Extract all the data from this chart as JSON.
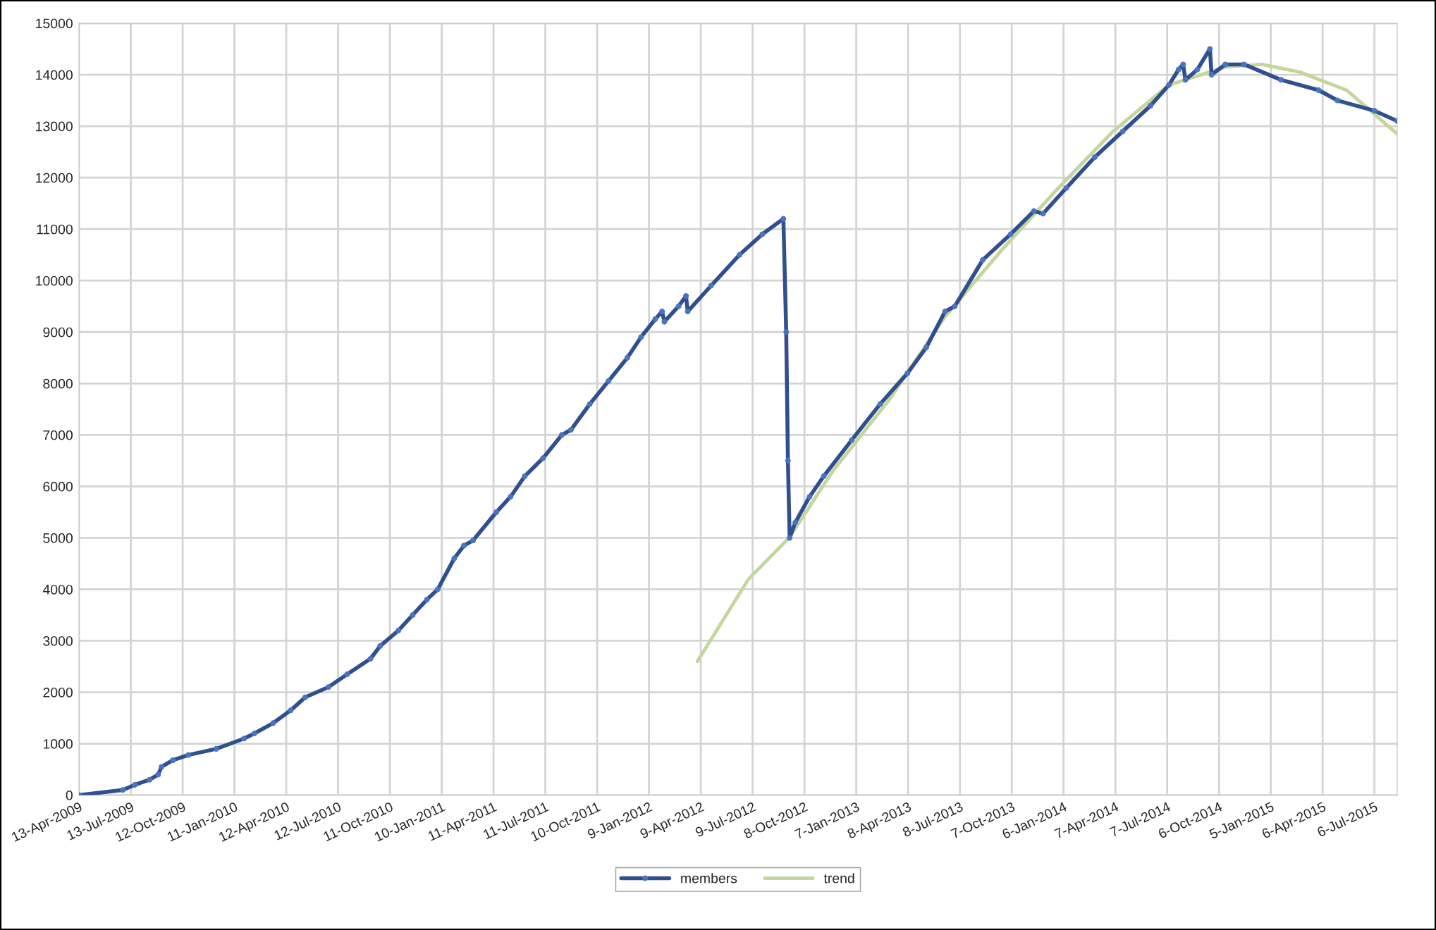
{
  "chart_data": {
    "type": "line",
    "xlim": [
      "2009-04-13",
      "2015-08-15"
    ],
    "ylim": [
      0,
      15000
    ],
    "yticks": [
      0,
      1000,
      2000,
      3000,
      4000,
      5000,
      6000,
      7000,
      8000,
      9000,
      10000,
      11000,
      12000,
      13000,
      14000,
      15000
    ],
    "xticks": [
      {
        "value": "2009-04-13",
        "label": "13-Apr-2009"
      },
      {
        "value": "2009-07-13",
        "label": "13-Jul-2009"
      },
      {
        "value": "2009-10-12",
        "label": "12-Oct-2009"
      },
      {
        "value": "2010-01-11",
        "label": "11-Jan-2010"
      },
      {
        "value": "2010-04-12",
        "label": "12-Apr-2010"
      },
      {
        "value": "2010-07-12",
        "label": "12-Jul-2010"
      },
      {
        "value": "2010-10-11",
        "label": "11-Oct-2010"
      },
      {
        "value": "2011-01-10",
        "label": "10-Jan-2011"
      },
      {
        "value": "2011-04-11",
        "label": "11-Apr-2011"
      },
      {
        "value": "2011-07-11",
        "label": "11-Jul-2011"
      },
      {
        "value": "2011-10-10",
        "label": "10-Oct-2011"
      },
      {
        "value": "2012-01-09",
        "label": "9-Jan-2012"
      },
      {
        "value": "2012-04-09",
        "label": "9-Apr-2012"
      },
      {
        "value": "2012-07-09",
        "label": "9-Jul-2012"
      },
      {
        "value": "2012-10-08",
        "label": "8-Oct-2012"
      },
      {
        "value": "2013-01-07",
        "label": "7-Jan-2013"
      },
      {
        "value": "2013-04-08",
        "label": "8-Apr-2013"
      },
      {
        "value": "2013-07-08",
        "label": "8-Jul-2013"
      },
      {
        "value": "2013-10-07",
        "label": "7-Oct-2013"
      },
      {
        "value": "2014-01-06",
        "label": "6-Jan-2014"
      },
      {
        "value": "2014-04-07",
        "label": "7-Apr-2014"
      },
      {
        "value": "2014-07-07",
        "label": "7-Jul-2014"
      },
      {
        "value": "2014-10-06",
        "label": "6-Oct-2014"
      },
      {
        "value": "2015-01-05",
        "label": "5-Jan-2015"
      },
      {
        "value": "2015-04-06",
        "label": "6-Apr-2015"
      },
      {
        "value": "2015-07-06",
        "label": "6-Jul-2015"
      }
    ],
    "grid": true,
    "legend": "bottom",
    "series": [
      {
        "name": "members",
        "color": "#2f4f8f",
        "marker": "circle",
        "x": [
          "2009-04-13",
          "2009-06-29",
          "2009-07-20",
          "2009-08-15",
          "2009-08-30",
          "2009-09-05",
          "2009-09-25",
          "2009-10-22",
          "2009-12-10",
          "2010-01-28",
          "2010-02-15",
          "2010-03-20",
          "2010-04-20",
          "2010-05-15",
          "2010-06-25",
          "2010-07-28",
          "2010-09-07",
          "2010-09-24",
          "2010-10-26",
          "2010-11-20",
          "2010-12-15",
          "2011-01-03",
          "2011-02-01",
          "2011-02-18",
          "2011-03-06",
          "2011-04-16",
          "2011-05-11",
          "2011-06-05",
          "2011-07-07",
          "2011-08-09",
          "2011-08-25",
          "2011-09-27",
          "2011-10-30",
          "2011-12-02",
          "2011-12-26",
          "2012-01-20",
          "2012-02-01",
          "2012-02-05",
          "2012-03-01",
          "2012-03-14",
          "2012-03-17",
          "2012-04-27",
          "2012-06-16",
          "2012-07-26",
          "2012-09-01",
          "2012-09-06",
          "2012-09-09",
          "2012-09-12",
          "2012-09-22",
          "2012-10-17",
          "2012-11-11",
          "2012-12-30",
          "2013-02-18",
          "2013-04-07",
          "2013-05-10",
          "2013-06-12",
          "2013-06-29",
          "2013-08-17",
          "2013-10-05",
          "2013-11-15",
          "2013-12-01",
          "2014-01-11",
          "2014-03-02",
          "2014-04-20",
          "2014-06-08",
          "2014-07-10",
          "2014-07-27",
          "2014-08-04",
          "2014-08-08",
          "2014-08-29",
          "2014-09-20",
          "2014-09-23",
          "2014-10-17",
          "2014-11-19",
          "2015-01-23",
          "2015-03-30",
          "2015-05-02",
          "2015-07-06",
          "2015-08-15"
        ],
        "values": [
          0,
          100,
          200,
          300,
          400,
          550,
          680,
          780,
          900,
          1100,
          1200,
          1400,
          1650,
          1900,
          2100,
          2350,
          2650,
          2900,
          3200,
          3500,
          3800,
          4000,
          4600,
          4850,
          4950,
          5500,
          5800,
          6200,
          6550,
          7000,
          7100,
          7600,
          8050,
          8500,
          8900,
          9250,
          9400,
          9200,
          9500,
          9700,
          9400,
          9900,
          10500,
          10900,
          11200,
          9000,
          6500,
          5000,
          5300,
          5800,
          6200,
          6900,
          7600,
          8200,
          8700,
          9400,
          9500,
          10400,
          10900,
          11350,
          11300,
          11800,
          12400,
          12900,
          13400,
          13800,
          14100,
          14200,
          13900,
          14100,
          14500,
          14000,
          14200,
          14200,
          13900,
          13700,
          13500,
          13300,
          13100
        ]
      },
      {
        "name": "trend",
        "color": "#c3d69b",
        "marker": "none",
        "x": [
          "2012-04-03",
          "2012-07-02",
          "2012-09-11",
          "2012-11-27",
          "2013-03-07",
          "2013-06-12",
          "2013-09-20",
          "2013-12-28",
          "2014-04-03",
          "2014-07-10",
          "2014-10-17",
          "2014-12-21",
          "2015-02-25",
          "2015-05-18",
          "2015-08-15"
        ],
        "values": [
          2600,
          4200,
          5000,
          6300,
          7700,
          9300,
          10600,
          11800,
          12900,
          13800,
          14150,
          14200,
          14050,
          13700,
          12850
        ]
      }
    ]
  }
}
